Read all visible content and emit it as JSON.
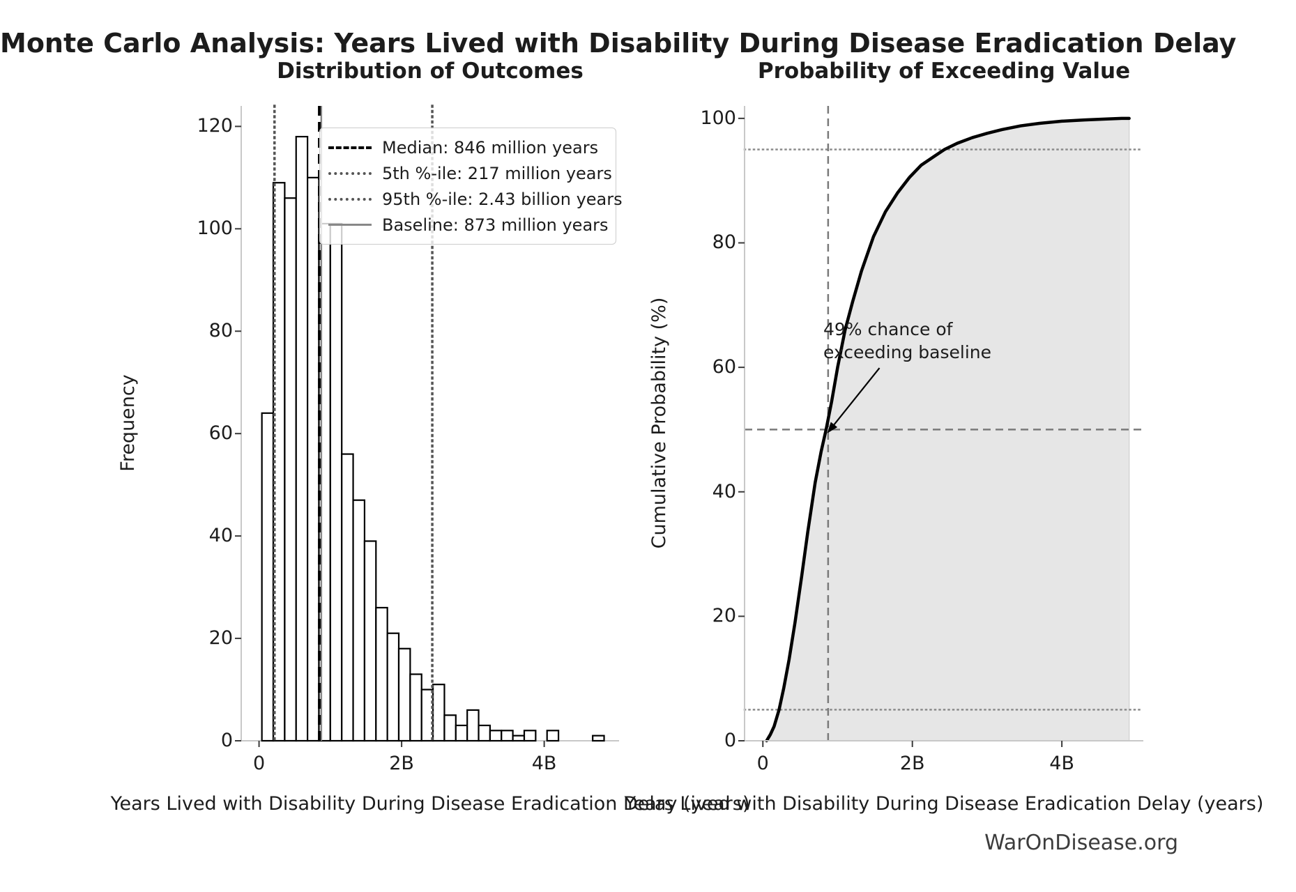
{
  "figure": {
    "suptitle": "Monte Carlo Analysis: Years Lived with Disability During Disease Eradication Delay",
    "watermark": "WarOnDisease.org"
  },
  "colors": {
    "bar_fill": "#ffffff",
    "bar_edge": "#000000",
    "median_line": "#000000",
    "percentile_line": "#555555",
    "baseline_line": "#888888",
    "cdf_line": "#000000",
    "cdf_fill": "#e6e6e6",
    "reference_gray": "#7a7a7a",
    "spine": "#c8c8c8",
    "tick": "#3a3a3a"
  },
  "chart_data": [
    {
      "type": "bar",
      "title": "Distribution of Outcomes",
      "xlabel": "Years Lived with Disability During Disease Eradication Delay (years)",
      "ylabel": "Frequency",
      "bin_start_billions": 0.04,
      "bin_width_billions": 0.16,
      "values": [
        64,
        109,
        106,
        118,
        110,
        101,
        101,
        56,
        47,
        39,
        26,
        21,
        18,
        13,
        10,
        11,
        5,
        3,
        6,
        3,
        2,
        2,
        1,
        2,
        0,
        2,
        0,
        0,
        0,
        1
      ],
      "xlim_billions": [
        -0.25,
        5.05
      ],
      "ylim": [
        0,
        124
      ],
      "xticks": [
        {
          "v": 0,
          "label": "0"
        },
        {
          "v": 2,
          "label": "2B"
        },
        {
          "v": 4,
          "label": "4B"
        }
      ],
      "yticks": [
        0,
        20,
        40,
        60,
        80,
        100,
        120
      ],
      "grid": false,
      "legend_position": "upper right",
      "ref_lines": [
        {
          "id": "baseline-line",
          "x_billions": 0.873,
          "style": "solid",
          "label": "Baseline: 873 million years"
        },
        {
          "id": "percentile-5-line",
          "x_billions": 0.217,
          "style": "dotted",
          "label": "5th %-ile: 217 million years"
        },
        {
          "id": "percentile-95-line",
          "x_billions": 2.43,
          "style": "dotted",
          "label": "95th %-ile: 2.43 billion years"
        },
        {
          "id": "median-line",
          "x_billions": 0.846,
          "style": "dashed",
          "label": "Median: 846 million years"
        }
      ],
      "legend_order": [
        "Median: 846 million years",
        "5th %-ile: 217 million years",
        "95th %-ile: 2.43 billion years",
        "Baseline: 873 million years"
      ],
      "legend_styles": [
        "median",
        "dotted",
        "dotted",
        "baseline"
      ]
    },
    {
      "type": "line",
      "title": "Probability of Exceeding Value",
      "xlabel": "Years Lived with Disability During Disease Eradication Delay (years)",
      "ylabel": "Cumulative Probability (%)",
      "x_billions": [
        0.05,
        0.1,
        0.15,
        0.217,
        0.28,
        0.35,
        0.43,
        0.52,
        0.6,
        0.7,
        0.78,
        0.846,
        0.92,
        1.0,
        1.1,
        1.2,
        1.32,
        1.48,
        1.64,
        1.8,
        1.96,
        2.12,
        2.28,
        2.43,
        2.6,
        2.8,
        3.0,
        3.2,
        3.45,
        3.7,
        4.0,
        4.3,
        4.6,
        4.8,
        4.9
      ],
      "y_percent": [
        0,
        1,
        2.3,
        5,
        8.5,
        13,
        19,
        26.5,
        33.5,
        41.5,
        46.5,
        50,
        54.5,
        60,
        66,
        70.5,
        75.5,
        81,
        85,
        88,
        90.5,
        92.5,
        93.8,
        95,
        96,
        96.9,
        97.6,
        98.2,
        98.8,
        99.2,
        99.55,
        99.75,
        99.9,
        100,
        100
      ],
      "xlim_billions": [
        -0.245,
        5.09
      ],
      "ylim": [
        0,
        102
      ],
      "xticks": [
        {
          "v": 0,
          "label": "0"
        },
        {
          "v": 2,
          "label": "2B"
        },
        {
          "v": 4,
          "label": "4B"
        }
      ],
      "yticks": [
        0,
        20,
        40,
        60,
        80,
        100
      ],
      "grid": false,
      "fill_under_curve": true,
      "h_lines": [
        {
          "y_percent": 95,
          "style": "dotted"
        },
        {
          "y_percent": 50,
          "style": "dashed"
        },
        {
          "y_percent": 5,
          "style": "dotted"
        }
      ],
      "v_lines": [
        {
          "x_billions": 0.873,
          "style": "dashed"
        }
      ],
      "annotation": {
        "line1": "49% chance of",
        "line2": "exceeding baseline",
        "arrow_tip_x_billions": 0.86,
        "arrow_tip_percent": 49.4,
        "arrow_tail_x_billions": 1.56,
        "arrow_tail_percent": 59.9
      }
    }
  ]
}
